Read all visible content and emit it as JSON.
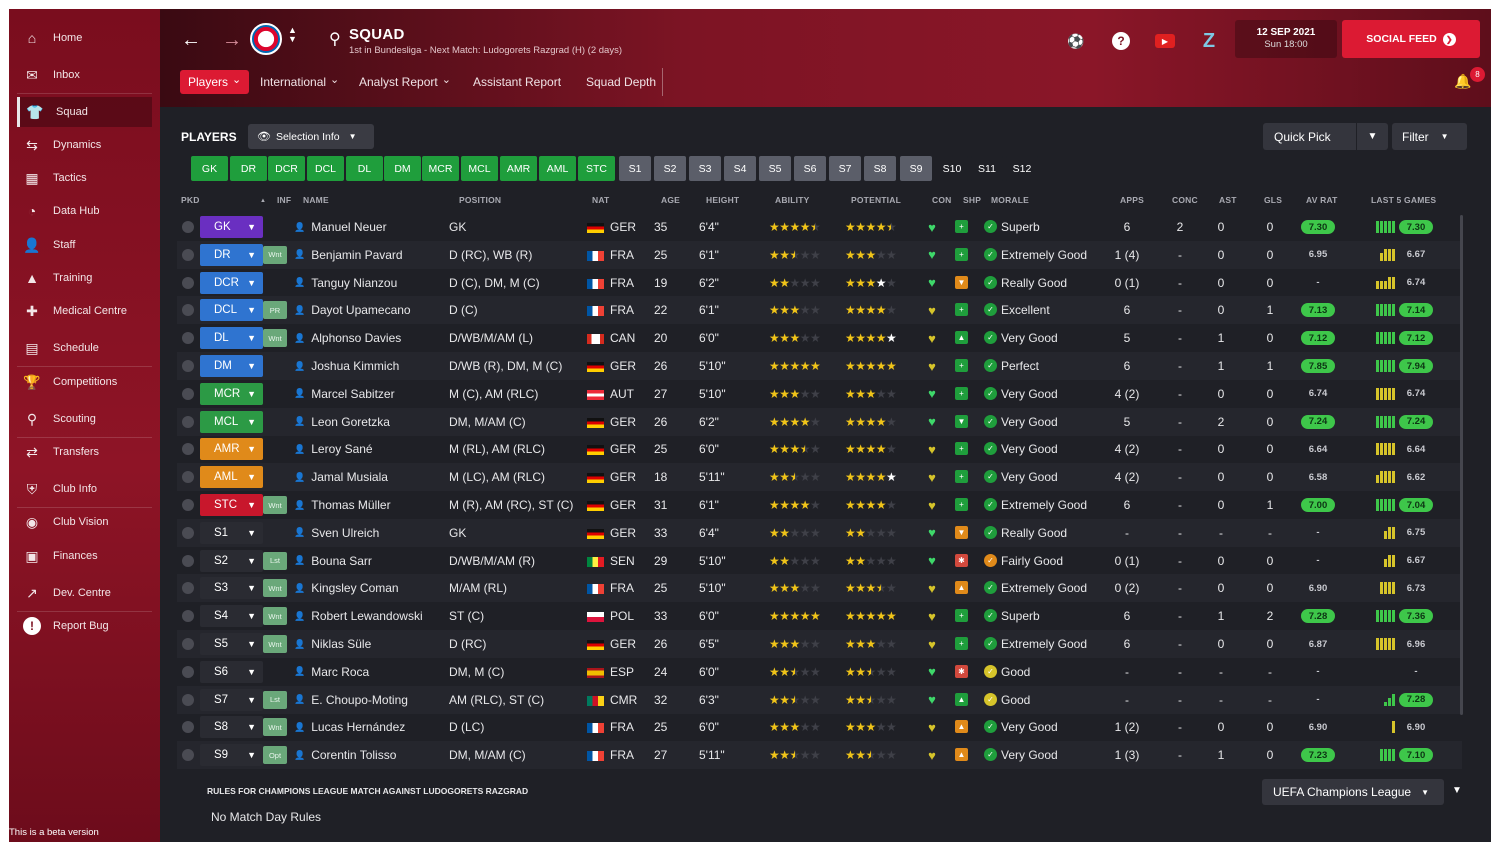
{
  "sidebar": {
    "items": [
      {
        "label": "Home",
        "icon": "home-icon",
        "glyph": "⌂"
      },
      {
        "label": "Inbox",
        "icon": "inbox-icon",
        "glyph": "✉"
      },
      {
        "label": "Squad",
        "icon": "squad-shirt-icon",
        "glyph": "👕",
        "active": true
      },
      {
        "label": "Dynamics",
        "icon": "dynamics-icon",
        "glyph": "⇆"
      },
      {
        "label": "Tactics",
        "icon": "tactics-icon",
        "glyph": "▦"
      },
      {
        "label": "Data Hub",
        "icon": "data-hub-icon",
        "glyph": "◔"
      },
      {
        "label": "Staff",
        "icon": "staff-icon",
        "glyph": "👤"
      },
      {
        "label": "Training",
        "icon": "training-icon",
        "glyph": "▲"
      },
      {
        "label": "Medical Centre",
        "icon": "medical-icon",
        "glyph": "✚"
      },
      {
        "label": "Schedule",
        "icon": "schedule-icon",
        "glyph": "▤"
      },
      {
        "label": "Competitions",
        "icon": "trophy-icon",
        "glyph": "🏆"
      },
      {
        "label": "Scouting",
        "icon": "scouting-icon",
        "glyph": "⚲"
      },
      {
        "label": "Transfers",
        "icon": "transfers-icon",
        "glyph": "⇄"
      },
      {
        "label": "Club Info",
        "icon": "club-info-icon",
        "glyph": "⛨"
      },
      {
        "label": "Club Vision",
        "icon": "club-vision-icon",
        "glyph": "◉"
      },
      {
        "label": "Finances",
        "icon": "finances-icon",
        "glyph": "▣"
      },
      {
        "label": "Dev. Centre",
        "icon": "dev-centre-icon",
        "glyph": "↗"
      },
      {
        "label": "Report Bug",
        "icon": "report-bug-icon",
        "glyph": "!"
      }
    ],
    "beta_text": "This is a beta version"
  },
  "header": {
    "title": "SQUAD",
    "subtitle": "1st in Bundesliga - Next Match: Ludogorets Razgrad (H) (2 days)",
    "date": "12 SEP 2021",
    "time": "Sun 18:00",
    "social_label": "SOCIAL FEED",
    "notification_count": "8"
  },
  "tabs": [
    "Players",
    "International",
    "Analyst Report",
    "Assistant Report",
    "Squad Depth"
  ],
  "toolbar": {
    "players_label": "PLAYERS",
    "selection_info": "Selection Info",
    "quick_pick": "Quick Pick",
    "filter": "Filter"
  },
  "position_buttons": [
    "GK",
    "DR",
    "DCR",
    "DCL",
    "DL",
    "DM",
    "MCR",
    "MCL",
    "AMR",
    "AML",
    "STC",
    "S1",
    "S2",
    "S3",
    "S4",
    "S5",
    "S6",
    "S7",
    "S8",
    "S9",
    "S10",
    "S11",
    "S12"
  ],
  "columns": [
    "PKD",
    "INF",
    "NAME",
    "POSITION",
    "NAT",
    "AGE",
    "HEIGHT",
    "ABILITY",
    "POTENTIAL",
    "CON",
    "SHP",
    "MORALE",
    "APPS",
    "CONC",
    "AST",
    "GLS",
    "AV RAT",
    "LAST 5 GAMES"
  ],
  "colors": {
    "gk": "#6a2fc1",
    "def": "#2f74d0",
    "mid": "#2c9a45",
    "att_mid": "#e08a1a",
    "st": "#c8172c",
    "sub": "#2a2b32",
    "accent": "#dc1a33"
  },
  "players": [
    {
      "pos": "GK",
      "cat": "gk",
      "inf": "",
      "name": "Manuel Neuer",
      "position": "GK",
      "nat": "GER",
      "flag": "ger",
      "age": "35",
      "height": "6'4\"",
      "ability": 4.5,
      "potential": 4.5,
      "potential_white": 0,
      "con": "green",
      "shp": "up-green",
      "morale_ic": "green",
      "morale": "Superb",
      "apps": "6",
      "conc": "2",
      "ast": "0",
      "gls": "0",
      "avrat": "7.30",
      "avrat_style": "green",
      "bars": [
        3,
        3,
        3,
        3,
        3
      ],
      "last": "7.30",
      "last_style": "green"
    },
    {
      "pos": "DR",
      "cat": "def",
      "inf": "Wnt",
      "name": "Benjamin Pavard",
      "position": "D (RC), WB (R)",
      "nat": "FRA",
      "flag": "fra",
      "age": "25",
      "height": "6'1\"",
      "ability": 2.5,
      "potential": 3,
      "potential_white": 0,
      "con": "green",
      "shp": "up-green",
      "morale_ic": "green",
      "morale": "Extremely Good",
      "apps": "1 (4)",
      "conc": "-",
      "ast": "0",
      "gls": "0",
      "avrat": "6.95",
      "avrat_style": "plain",
      "bars": [
        2,
        3,
        3,
        3
      ],
      "last": "6.67",
      "last_style": "plain"
    },
    {
      "pos": "DCR",
      "cat": "def",
      "inf": "",
      "name": "Tanguy Nianzou",
      "position": "D (C), DM, M (C)",
      "nat": "FRA",
      "flag": "fra",
      "age": "19",
      "height": "6'2\"",
      "ability": 2,
      "potential": 3,
      "potential_white": 1,
      "con": "green",
      "shp": "down-orange",
      "morale_ic": "green",
      "morale": "Really Good",
      "apps": "0 (1)",
      "conc": "-",
      "ast": "0",
      "gls": "0",
      "avrat": "-",
      "avrat_style": "plain",
      "bars": [
        2,
        2,
        2,
        3,
        3
      ],
      "last": "6.74",
      "last_style": "plain"
    },
    {
      "pos": "DCL",
      "cat": "def",
      "inf": "PR",
      "name": "Dayot Upamecano",
      "position": "D (C)",
      "nat": "FRA",
      "flag": "fra",
      "age": "22",
      "height": "6'1\"",
      "ability": 3,
      "potential": 4,
      "potential_white": 0,
      "con": "yellow",
      "shp": "up-green",
      "morale_ic": "green",
      "morale": "Excellent",
      "apps": "6",
      "conc": "-",
      "ast": "0",
      "gls": "1",
      "avrat": "7.13",
      "avrat_style": "green",
      "bars": [
        3,
        3,
        3,
        3,
        3
      ],
      "last": "7.14",
      "last_style": "green"
    },
    {
      "pos": "DL",
      "cat": "def",
      "inf": "Wnt",
      "name": "Alphonso Davies",
      "position": "D/WB/M/AM (L)",
      "nat": "CAN",
      "flag": "can",
      "age": "20",
      "height": "6'0\"",
      "ability": 3,
      "potential": 4,
      "potential_white": 0.5,
      "con": "yellow",
      "shp": "up-green2",
      "morale_ic": "green",
      "morale": "Very Good",
      "apps": "5",
      "conc": "-",
      "ast": "1",
      "gls": "0",
      "avrat": "7.12",
      "avrat_style": "green",
      "bars": [
        3,
        3,
        3,
        3,
        3
      ],
      "last": "7.12",
      "last_style": "green"
    },
    {
      "pos": "DM",
      "cat": "def",
      "inf": "",
      "name": "Joshua Kimmich",
      "position": "D/WB (R), DM, M (C)",
      "nat": "GER",
      "flag": "ger",
      "age": "26",
      "height": "5'10\"",
      "ability": 5,
      "potential": 5,
      "potential_white": 0,
      "con": "yellow",
      "shp": "up-green",
      "morale_ic": "green",
      "morale": "Perfect",
      "apps": "6",
      "conc": "-",
      "ast": "1",
      "gls": "1",
      "avrat": "7.85",
      "avrat_style": "green",
      "bars": [
        3,
        3,
        3,
        3,
        3
      ],
      "last": "7.94",
      "last_style": "green"
    },
    {
      "pos": "MCR",
      "cat": "mid",
      "inf": "",
      "name": "Marcel Sabitzer",
      "position": "M (C), AM (RLC)",
      "nat": "AUT",
      "flag": "aut",
      "age": "27",
      "height": "5'10\"",
      "ability": 3,
      "potential": 3,
      "potential_white": 0,
      "con": "green",
      "shp": "up-green",
      "morale_ic": "green",
      "morale": "Very Good",
      "apps": "4 (2)",
      "conc": "-",
      "ast": "0",
      "gls": "0",
      "avrat": "6.74",
      "avrat_style": "plain",
      "bars": [
        3,
        3,
        3,
        3,
        3
      ],
      "last": "6.74",
      "last_style": "plain"
    },
    {
      "pos": "MCL",
      "cat": "mid",
      "inf": "",
      "name": "Leon Goretzka",
      "position": "DM, M/AM (C)",
      "nat": "GER",
      "flag": "ger",
      "age": "26",
      "height": "6'2\"",
      "ability": 4,
      "potential": 4,
      "potential_white": 0,
      "con": "green",
      "shp": "down-green",
      "morale_ic": "green",
      "morale": "Very Good",
      "apps": "5",
      "conc": "-",
      "ast": "2",
      "gls": "0",
      "avrat": "7.24",
      "avrat_style": "green",
      "bars": [
        3,
        3,
        3,
        3,
        3
      ],
      "last": "7.24",
      "last_style": "green"
    },
    {
      "pos": "AMR",
      "cat": "att_mid",
      "inf": "",
      "name": "Leroy Sané",
      "position": "M (RL), AM (RLC)",
      "nat": "GER",
      "flag": "ger",
      "age": "25",
      "height": "6'0\"",
      "ability": 3.5,
      "potential": 4,
      "potential_white": 0,
      "con": "yellow",
      "shp": "up-green",
      "morale_ic": "green",
      "morale": "Very Good",
      "apps": "4 (2)",
      "conc": "-",
      "ast": "0",
      "gls": "0",
      "avrat": "6.64",
      "avrat_style": "plain",
      "bars": [
        3,
        3,
        3,
        3,
        3
      ],
      "last": "6.64",
      "last_style": "plain"
    },
    {
      "pos": "AML",
      "cat": "att_mid",
      "inf": "",
      "name": "Jamal Musiala",
      "position": "M (LC), AM (RLC)",
      "nat": "GER",
      "flag": "ger",
      "age": "18",
      "height": "5'11\"",
      "ability": 2.5,
      "potential": 4,
      "potential_white": 1,
      "con": "yellow",
      "shp": "up-green",
      "morale_ic": "green",
      "morale": "Very Good",
      "apps": "4 (2)",
      "conc": "-",
      "ast": "0",
      "gls": "0",
      "avrat": "6.58",
      "avrat_style": "plain",
      "bars": [
        2,
        3,
        3,
        3,
        3
      ],
      "last": "6.62",
      "last_style": "plain"
    },
    {
      "pos": "STC",
      "cat": "st",
      "inf": "Wnt",
      "name": "Thomas Müller",
      "position": "M (R), AM (RC), ST (C)",
      "nat": "GER",
      "flag": "ger",
      "age": "31",
      "height": "6'1\"",
      "ability": 4,
      "potential": 4,
      "potential_white": 0,
      "con": "yellow",
      "shp": "up-green",
      "morale_ic": "green",
      "morale": "Extremely Good",
      "apps": "6",
      "conc": "-",
      "ast": "0",
      "gls": "1",
      "avrat": "7.00",
      "avrat_style": "green",
      "bars": [
        3,
        3,
        3,
        3,
        3
      ],
      "last": "7.04",
      "last_style": "green"
    },
    {
      "pos": "S1",
      "cat": "sub",
      "inf": "",
      "name": "Sven Ulreich",
      "position": "GK",
      "nat": "GER",
      "flag": "ger",
      "age": "33",
      "height": "6'4\"",
      "ability": 2,
      "potential": 2,
      "potential_white": 0,
      "con": "green",
      "shp": "down-orange",
      "morale_ic": "green",
      "morale": "Really Good",
      "apps": "-",
      "conc": "-",
      "ast": "-",
      "gls": "-",
      "avrat": "-",
      "avrat_style": "plain",
      "bars": [
        2,
        3,
        3
      ],
      "last": "6.75",
      "last_style": "plain"
    },
    {
      "pos": "S2",
      "cat": "sub",
      "inf": "Lst",
      "name": "Bouna Sarr",
      "position": "D/WB/M/AM (R)",
      "nat": "SEN",
      "flag": "sen",
      "age": "29",
      "height": "5'10\"",
      "ability": 2,
      "potential": 2,
      "potential_white": 0,
      "con": "green",
      "shp": "dot-red",
      "morale_ic": "orange",
      "morale": "Fairly Good",
      "apps": "0 (1)",
      "conc": "-",
      "ast": "0",
      "gls": "0",
      "avrat": "-",
      "avrat_style": "plain",
      "bars": [
        2,
        3,
        3
      ],
      "last": "6.67",
      "last_style": "plain"
    },
    {
      "pos": "S3",
      "cat": "sub",
      "inf": "Wnt",
      "name": "Kingsley Coman",
      "position": "M/AM (RL)",
      "nat": "FRA",
      "flag": "fra",
      "age": "25",
      "height": "5'10\"",
      "ability": 3,
      "potential": 3.5,
      "potential_white": 0,
      "con": "yellow",
      "shp": "up-orange",
      "morale_ic": "green",
      "morale": "Extremely Good",
      "apps": "0 (2)",
      "conc": "-",
      "ast": "0",
      "gls": "0",
      "avrat": "6.90",
      "avrat_style": "plain",
      "bars": [
        3,
        3,
        3,
        3
      ],
      "last": "6.73",
      "last_style": "plain"
    },
    {
      "pos": "S4",
      "cat": "sub",
      "inf": "Wnt",
      "name": "Robert Lewandowski",
      "position": "ST (C)",
      "nat": "POL",
      "flag": "pol",
      "age": "33",
      "height": "6'0\"",
      "ability": 5,
      "potential": 5,
      "potential_white": 0,
      "con": "yellow",
      "shp": "up-green",
      "morale_ic": "green",
      "morale": "Superb",
      "apps": "6",
      "conc": "-",
      "ast": "1",
      "gls": "2",
      "avrat": "7.28",
      "avrat_style": "green",
      "bars": [
        3,
        3,
        3,
        3,
        3
      ],
      "last": "7.36",
      "last_style": "green"
    },
    {
      "pos": "S5",
      "cat": "sub",
      "inf": "Wnt",
      "name": "Niklas Süle",
      "position": "D (RC)",
      "nat": "GER",
      "flag": "ger",
      "age": "26",
      "height": "6'5\"",
      "ability": 3,
      "potential": 3,
      "potential_white": 0,
      "con": "yellow",
      "shp": "up-green",
      "morale_ic": "green",
      "morale": "Extremely Good",
      "apps": "6",
      "conc": "-",
      "ast": "0",
      "gls": "0",
      "avrat": "6.87",
      "avrat_style": "plain",
      "bars": [
        3,
        3,
        3,
        3,
        3
      ],
      "last": "6.96",
      "last_style": "plain"
    },
    {
      "pos": "S6",
      "cat": "sub",
      "inf": "",
      "name": "Marc Roca",
      "position": "DM, M (C)",
      "nat": "ESP",
      "flag": "esp",
      "age": "24",
      "height": "6'0\"",
      "ability": 2.5,
      "potential": 2.5,
      "potential_white": 0,
      "con": "green",
      "shp": "dot-red",
      "morale_ic": "yellow",
      "morale": "Good",
      "apps": "-",
      "conc": "-",
      "ast": "-",
      "gls": "-",
      "avrat": "-",
      "avrat_style": "plain",
      "bars": [],
      "last": "-",
      "last_style": "plain"
    },
    {
      "pos": "S7",
      "cat": "sub",
      "inf": "Lst",
      "name": "E. Choupo-Moting",
      "position": "AM (RLC), ST (C)",
      "nat": "CMR",
      "flag": "cmr",
      "age": "32",
      "height": "6'3\"",
      "ability": 2.5,
      "potential": 2.5,
      "potential_white": 0,
      "con": "green",
      "shp": "up-green2",
      "morale_ic": "yellow",
      "morale": "Good",
      "apps": "-",
      "conc": "-",
      "ast": "-",
      "gls": "-",
      "avrat": "-",
      "avrat_style": "plain",
      "bars": [
        1,
        2,
        3
      ],
      "last": "7.28",
      "last_style": "green"
    },
    {
      "pos": "S8",
      "cat": "sub",
      "inf": "Wnt",
      "name": "Lucas Hernández",
      "position": "D (LC)",
      "nat": "FRA",
      "flag": "fra",
      "age": "25",
      "height": "6'0\"",
      "ability": 3,
      "potential": 3,
      "potential_white": 0,
      "con": "yellow",
      "shp": "up-orange",
      "morale_ic": "green",
      "morale": "Very Good",
      "apps": "1 (2)",
      "conc": "-",
      "ast": "0",
      "gls": "0",
      "avrat": "6.90",
      "avrat_style": "plain",
      "bars": [
        3
      ],
      "last": "6.90",
      "last_style": "plain"
    },
    {
      "pos": "S9",
      "cat": "sub",
      "inf": "Opt",
      "name": "Corentin Tolisso",
      "position": "DM, M/AM (C)",
      "nat": "FRA",
      "flag": "fra",
      "age": "27",
      "height": "5'11\"",
      "ability": 2.5,
      "potential": 2.5,
      "potential_white": 0,
      "con": "yellow",
      "shp": "up-orange",
      "morale_ic": "green",
      "morale": "Very Good",
      "apps": "1 (3)",
      "conc": "-",
      "ast": "1",
      "gls": "0",
      "avrat": "7.23",
      "avrat_style": "green",
      "bars": [
        3,
        3,
        3,
        3
      ],
      "last": "7.10",
      "last_style": "green"
    }
  ],
  "rules": {
    "title": "RULES FOR CHAMPIONS LEAGUE MATCH AGAINST LUDOGORETS RAZGRAD",
    "text": "No Match Day Rules",
    "competition": "UEFA Champions League"
  }
}
